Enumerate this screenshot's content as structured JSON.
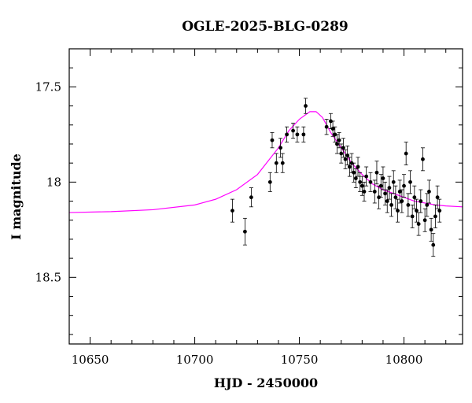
{
  "chart_data": {
    "type": "scatter",
    "title": "OGLE-2025-BLG-0289",
    "xlabel": "HJD - 2450000",
    "ylabel": "I magnitude",
    "xlim": [
      10640,
      10828
    ],
    "ylim": [
      18.85,
      17.3
    ],
    "y_inverted": true,
    "xticks": [
      10650,
      10700,
      10750,
      10800
    ],
    "yticks": [
      17.5,
      18,
      18.5
    ],
    "xtick_labels": [
      "10650",
      "10700",
      "10750",
      "10800"
    ],
    "ytick_labels": [
      "17.5",
      "18",
      "18.5"
    ],
    "grid": false,
    "legend": "none",
    "colors": {
      "points": "#000000",
      "model": "#ff00ff"
    },
    "model": {
      "name": "",
      "x": [
        10640,
        10660,
        10680,
        10700,
        10710,
        10720,
        10730,
        10740,
        10745,
        10750,
        10755,
        10758,
        10761,
        10765,
        10770,
        10775,
        10780,
        10785,
        10790,
        10795,
        10800,
        10805,
        10810,
        10815,
        10820,
        10828
      ],
      "y": [
        18.16,
        18.155,
        18.145,
        18.12,
        18.09,
        18.04,
        17.96,
        17.82,
        17.73,
        17.67,
        17.63,
        17.63,
        17.66,
        17.74,
        17.82,
        17.9,
        17.96,
        18.01,
        18.04,
        18.06,
        18.08,
        18.1,
        18.11,
        18.12,
        18.125,
        18.13
      ]
    },
    "series": [
      {
        "name": "",
        "x": [
          10718,
          10724,
          10727,
          10736,
          10737,
          10739,
          10741,
          10742,
          10744,
          10747,
          10749,
          10752,
          10753,
          10763,
          10765,
          10766,
          10767,
          10768,
          10769,
          10770,
          10771,
          10772,
          10773,
          10774,
          10775,
          10776,
          10777,
          10778,
          10779,
          10780,
          10781,
          10782,
          10784,
          10786,
          10787,
          10788,
          10789,
          10790,
          10791,
          10792,
          10793,
          10794,
          10795,
          10796,
          10797,
          10798,
          10799,
          10800,
          10801,
          10802,
          10803,
          10804,
          10805,
          10806,
          10807,
          10808,
          10809,
          10810,
          10811,
          10812,
          10813,
          10814,
          10815,
          10816,
          10817
        ],
        "y": [
          18.15,
          18.26,
          18.08,
          18.0,
          17.78,
          17.9,
          17.82,
          17.9,
          17.75,
          17.73,
          17.75,
          17.75,
          17.6,
          17.71,
          17.68,
          17.72,
          17.75,
          17.8,
          17.78,
          17.85,
          17.82,
          17.88,
          17.86,
          17.92,
          17.9,
          17.95,
          17.98,
          17.92,
          18.0,
          18.02,
          18.05,
          17.97,
          18.0,
          18.05,
          17.95,
          18.08,
          18.02,
          17.98,
          18.06,
          18.1,
          18.03,
          18.12,
          18.0,
          18.08,
          18.15,
          18.05,
          18.1,
          18.02,
          17.85,
          18.12,
          18.0,
          18.18,
          18.08,
          18.15,
          18.22,
          18.1,
          17.88,
          18.2,
          18.12,
          18.05,
          18.25,
          18.33,
          18.18,
          18.08,
          18.15
        ],
        "yerr": [
          0.06,
          0.07,
          0.05,
          0.05,
          0.04,
          0.05,
          0.05,
          0.05,
          0.04,
          0.04,
          0.04,
          0.04,
          0.04,
          0.04,
          0.04,
          0.04,
          0.04,
          0.05,
          0.04,
          0.05,
          0.05,
          0.05,
          0.05,
          0.05,
          0.05,
          0.05,
          0.05,
          0.05,
          0.05,
          0.05,
          0.05,
          0.05,
          0.05,
          0.06,
          0.06,
          0.06,
          0.06,
          0.06,
          0.06,
          0.06,
          0.06,
          0.06,
          0.06,
          0.06,
          0.06,
          0.06,
          0.06,
          0.06,
          0.06,
          0.06,
          0.06,
          0.06,
          0.06,
          0.06,
          0.06,
          0.06,
          0.06,
          0.06,
          0.06,
          0.06,
          0.06,
          0.06,
          0.06,
          0.06,
          0.06
        ]
      }
    ]
  }
}
